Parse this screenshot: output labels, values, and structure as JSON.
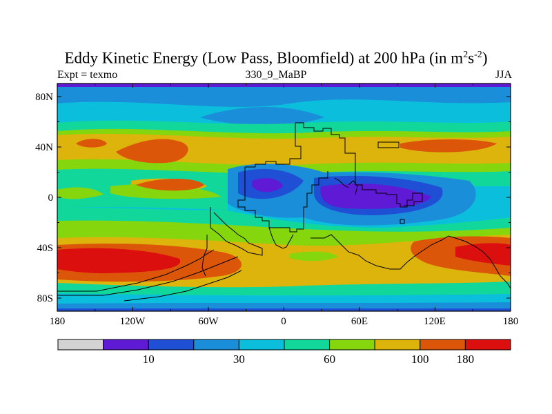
{
  "title": {
    "main": "Eddy Kinetic Energy (Low Pass, Bloomfield) at 200 hPa (in m",
    "sup1": "2",
    "mid": "s",
    "sup2": "-2",
    "end": ")"
  },
  "subtitle": {
    "left": "Expt = texmo",
    "center": "330_9_MaBP",
    "right": "JJA"
  },
  "axes": {
    "x_ticks": [
      "180",
      "120W",
      "60W",
      "0",
      "60E",
      "120E",
      "180"
    ],
    "y_ticks": [
      "80N",
      "40N",
      "0",
      "40S",
      "80S"
    ]
  },
  "colorbar": {
    "colors": [
      "#d3d3d3",
      "#5f1ad6",
      "#1f4fd4",
      "#1a8ed9",
      "#0bbfdc",
      "#12d79b",
      "#86d60e",
      "#dcb40b",
      "#dc560a",
      "#dc0f0f"
    ],
    "labels": [
      {
        "text": "10",
        "after_box": 2
      },
      {
        "text": "30",
        "after_box": 4
      },
      {
        "text": "60",
        "after_box": 6
      },
      {
        "text": "100",
        "after_box": 8
      },
      {
        "text": "180",
        "after_box": 9
      }
    ]
  }
}
